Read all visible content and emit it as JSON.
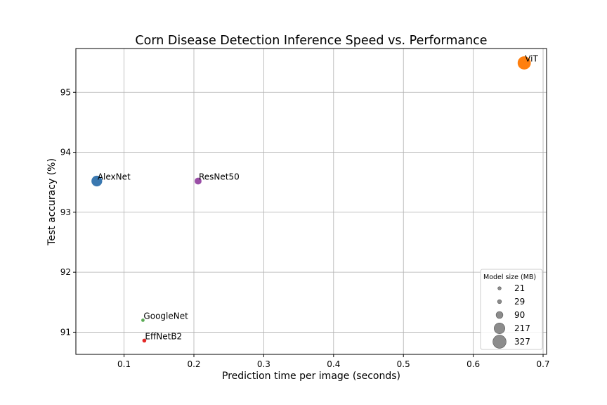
{
  "chart_data": {
    "type": "scatter",
    "title": "Corn Disease Detection Inference Speed vs. Performance",
    "xlabel": "Prediction time per image (seconds)",
    "ylabel": "Test accuracy (%)",
    "xlim": [
      0.031,
      0.705
    ],
    "ylim": [
      90.63,
      95.73
    ],
    "xticks": [
      0.1,
      0.2,
      0.3,
      0.4,
      0.5,
      0.6,
      0.7
    ],
    "xtick_labels": [
      "0.1",
      "0.2",
      "0.3",
      "0.4",
      "0.5",
      "0.6",
      "0.7"
    ],
    "yticks": [
      91,
      92,
      93,
      94,
      95
    ],
    "ytick_labels": [
      "91",
      "92",
      "93",
      "94",
      "95"
    ],
    "grid": true,
    "points": [
      {
        "label": "AlexNet",
        "x": 0.061,
        "y": 93.52,
        "size_mb": 217,
        "color": "#3a78b0"
      },
      {
        "label": "ResNet50",
        "x": 0.206,
        "y": 93.52,
        "size_mb": 90,
        "color": "#9a4ea6"
      },
      {
        "label": "GoogleNet",
        "x": 0.127,
        "y": 91.2,
        "size_mb": 21,
        "color": "#5aaa54"
      },
      {
        "label": "EffNetB2",
        "x": 0.129,
        "y": 90.86,
        "size_mb": 29,
        "color": "#e42726"
      },
      {
        "label": "ViT",
        "x": 0.673,
        "y": 95.49,
        "size_mb": 327,
        "color": "#ff7f0e"
      }
    ],
    "legend": {
      "title": "Model size (MB)",
      "placement": "lower-right",
      "entries": [
        "21",
        "29",
        "90",
        "217",
        "327"
      ],
      "marker_color": "#7f7f7f"
    }
  }
}
